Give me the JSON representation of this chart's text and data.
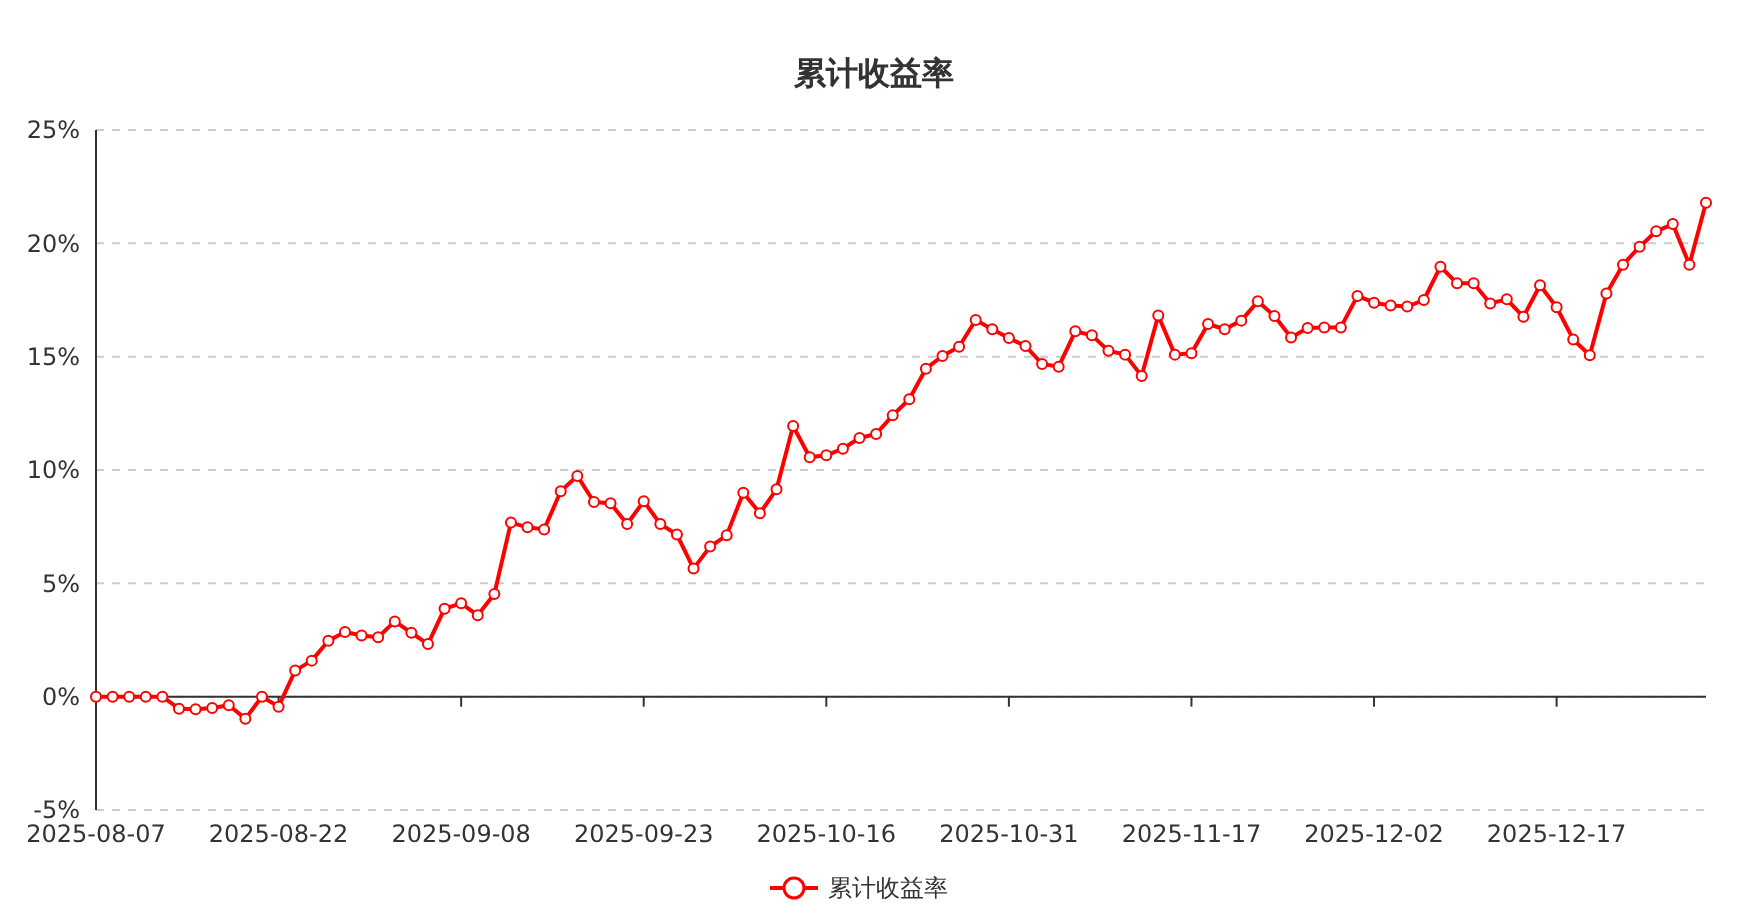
{
  "chart_data": {
    "type": "line",
    "title": "累计收益率",
    "categories": [
      "2025-08-07",
      null,
      null,
      null,
      null,
      null,
      null,
      null,
      null,
      null,
      null,
      "2025-08-22",
      null,
      null,
      null,
      null,
      null,
      null,
      null,
      null,
      null,
      null,
      "2025-09-08",
      null,
      null,
      null,
      null,
      null,
      null,
      null,
      null,
      null,
      null,
      "2025-09-23",
      null,
      null,
      null,
      null,
      null,
      null,
      null,
      null,
      null,
      null,
      "2025-10-16",
      null,
      null,
      null,
      null,
      null,
      null,
      null,
      null,
      null,
      null,
      "2025-10-31",
      null,
      null,
      null,
      null,
      null,
      null,
      null,
      null,
      null,
      null,
      "2025-11-17",
      null,
      null,
      null,
      null,
      null,
      null,
      null,
      null,
      null,
      null,
      "2025-12-02",
      null,
      null,
      null,
      null,
      null,
      null,
      null,
      null,
      null,
      null,
      "2025-12-17",
      null,
      null,
      null,
      null,
      null,
      null,
      null,
      null,
      null
    ],
    "series": [
      {
        "name": "累计收益率",
        "color": "#ff0000",
        "values": [
          0,
          0,
          0,
          0,
          0,
          -0.53,
          -0.56,
          -0.5,
          -0.38,
          -0.97,
          0,
          -0.44,
          1.15,
          1.59,
          2.47,
          2.85,
          2.7,
          2.62,
          3.32,
          2.82,
          2.32,
          3.88,
          4.12,
          3.59,
          4.53,
          7.68,
          7.47,
          7.38,
          9.06,
          9.74,
          8.59,
          8.53,
          7.62,
          8.62,
          7.62,
          7.15,
          5.65,
          6.62,
          7.12,
          9.0,
          8.09,
          9.15,
          11.94,
          10.56,
          10.65,
          10.94,
          11.41,
          11.59,
          12.41,
          13.12,
          14.47,
          15.03,
          15.44,
          16.62,
          16.21,
          15.82,
          15.47,
          14.68,
          14.56,
          16.12,
          15.94,
          15.26,
          15.09,
          14.15,
          16.82,
          15.09,
          15.15,
          16.44,
          16.21,
          16.59,
          17.44,
          16.79,
          15.85,
          16.26,
          16.29,
          16.29,
          17.68,
          17.38,
          17.26,
          17.21,
          17.5,
          18.97,
          18.24,
          18.24,
          17.35,
          17.53,
          16.76,
          18.15,
          17.18,
          15.76,
          15.06,
          17.79,
          19.06,
          19.85,
          20.53,
          20.85,
          19.06,
          21.79
        ]
      }
    ],
    "ylim": [
      -5,
      25
    ],
    "yticks": [
      {
        "value": -5,
        "label": "-5%"
      },
      {
        "value": 0,
        "label": "0%"
      },
      {
        "value": 5,
        "label": "5%"
      },
      {
        "value": 10,
        "label": "10%"
      },
      {
        "value": 15,
        "label": "15%"
      },
      {
        "value": 20,
        "label": "20%"
      },
      {
        "value": 25,
        "label": "25%"
      }
    ],
    "grid": "y",
    "legend": "bottom",
    "marker": "circle",
    "line_style": "solid"
  }
}
